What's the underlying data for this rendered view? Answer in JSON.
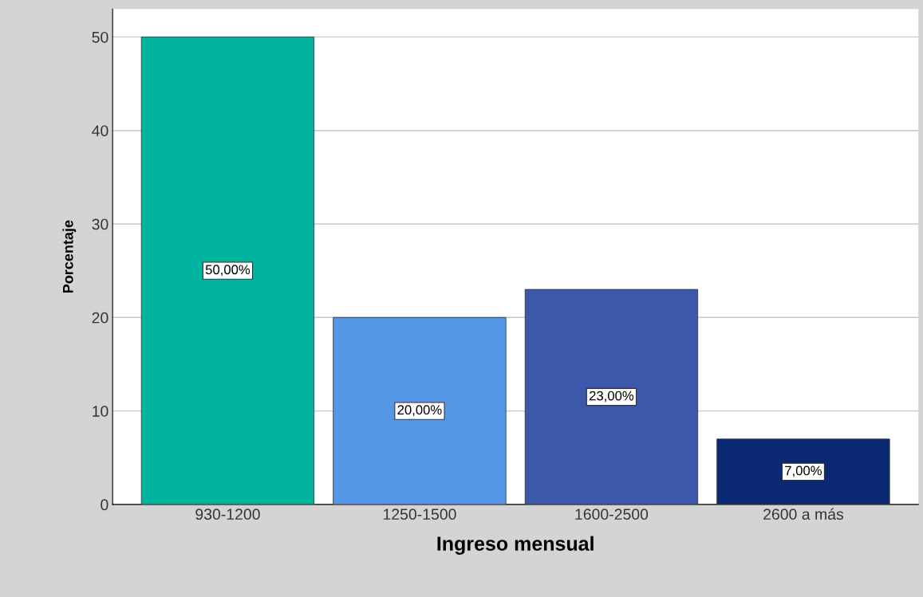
{
  "chart_data": {
    "type": "bar",
    "xlabel": "Ingreso mensual",
    "ylabel": "Porcentaje",
    "categories": [
      "930-1200",
      "1250-1500",
      "1600-2500",
      "2600 a más"
    ],
    "values": [
      50,
      20,
      23,
      7
    ],
    "colors": [
      "#00b4a0",
      "#5596e6",
      "#3c58ab",
      "#0c2a73"
    ],
    "value_labels": [
      "50,00%",
      "20,00%",
      "23,00%",
      "7,00%"
    ],
    "ylim": [
      0,
      53
    ],
    "yticks": [
      0,
      10,
      20,
      30,
      40,
      50
    ],
    "grid": "y",
    "legend": false
  }
}
